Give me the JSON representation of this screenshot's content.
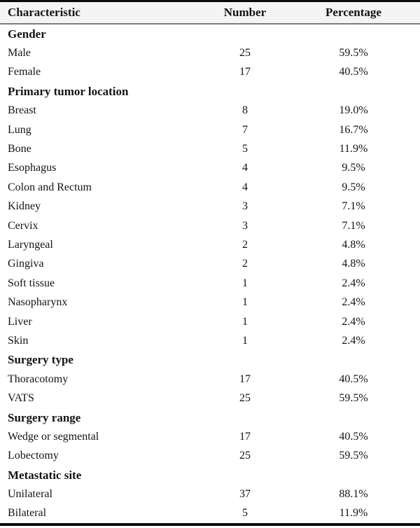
{
  "table": {
    "columns": [
      "Characteristic",
      "Number",
      "Percentage"
    ],
    "sections": [
      {
        "header": "Gender",
        "rows": [
          [
            "Male",
            "25",
            "59.5%"
          ],
          [
            "Female",
            "17",
            "40.5%"
          ]
        ]
      },
      {
        "header": "Primary tumor location",
        "rows": [
          [
            "Breast",
            "8",
            "19.0%"
          ],
          [
            "Lung",
            "7",
            "16.7%"
          ],
          [
            "Bone",
            "5",
            "11.9%"
          ],
          [
            "Esophagus",
            "4",
            "9.5%"
          ],
          [
            "Colon and Rectum",
            "4",
            "9.5%"
          ],
          [
            "Kidney",
            "3",
            "7.1%"
          ],
          [
            "Cervix",
            "3",
            "7.1%"
          ],
          [
            "Laryngeal",
            "2",
            "4.8%"
          ],
          [
            "Gingiva",
            "2",
            "4.8%"
          ],
          [
            "Soft tissue",
            "1",
            "2.4%"
          ],
          [
            "Nasopharynx",
            "1",
            "2.4%"
          ],
          [
            "Liver",
            "1",
            "2.4%"
          ],
          [
            "Skin",
            "1",
            "2.4%"
          ]
        ]
      },
      {
        "header": "Surgery type",
        "rows": [
          [
            "Thoracotomy",
            "17",
            "40.5%"
          ],
          [
            "VATS",
            "25",
            "59.5%"
          ]
        ]
      },
      {
        "header": "Surgery range",
        "rows": [
          [
            "Wedge or segmental",
            "17",
            "40.5%"
          ],
          [
            "Lobectomy",
            "25",
            "59.5%"
          ]
        ]
      },
      {
        "header": "Metastatic site",
        "rows": [
          [
            "Unilateral",
            "37",
            "88.1%"
          ],
          [
            "Bilateral",
            "5",
            "11.9%"
          ]
        ]
      }
    ]
  },
  "colors": {
    "text": "#141414",
    "background": "#ffffff",
    "header_bg": "#f4f4f4",
    "header_rule": "#7d7d7d",
    "border": "#0b0b0b"
  }
}
